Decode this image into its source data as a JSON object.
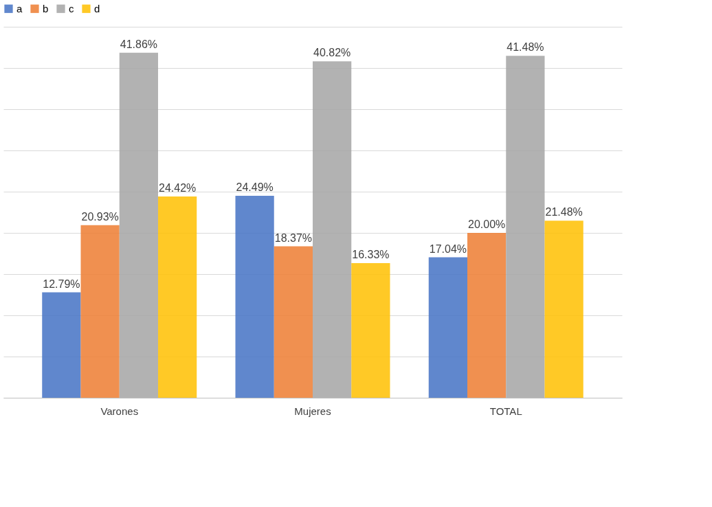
{
  "chart_data": {
    "type": "bar",
    "categories": [
      "Varones",
      "Mujeres",
      "TOTAL"
    ],
    "series": [
      {
        "name": "a",
        "color": "#4472c4",
        "values": [
          12.79,
          24.49,
          17.04
        ],
        "value_labels": [
          "12.79%",
          "24.49%",
          "17.04%"
        ]
      },
      {
        "name": "b",
        "color": "#ed7d31",
        "values": [
          20.93,
          18.37,
          20.0
        ],
        "value_labels": [
          "20.93%",
          "18.37%",
          "20.00%"
        ]
      },
      {
        "name": "c",
        "color": "#a5a5a5",
        "values": [
          41.86,
          40.82,
          41.48
        ],
        "value_labels": [
          "41.86%",
          "40.82%",
          "41.48%"
        ]
      },
      {
        "name": "d",
        "color": "#ffc000",
        "values": [
          24.42,
          16.33,
          21.48
        ],
        "value_labels": [
          "24.42%",
          "16.33%",
          "21.48%"
        ]
      }
    ],
    "ylim": [
      0,
      45
    ],
    "yticks": [
      {
        "value": 0,
        "label": null
      },
      {
        "value": 5,
        "label": null
      },
      {
        "value": 10,
        "label": null
      },
      {
        "value": 15,
        "label": null
      },
      {
        "value": 20,
        "label": null
      },
      {
        "value": 25,
        "label": null
      },
      {
        "value": 30,
        "label": null
      },
      {
        "value": 35,
        "label": null
      },
      {
        "value": 40,
        "label": null
      },
      {
        "value": 45,
        "label": null
      }
    ],
    "grid": "y",
    "legend": "top",
    "tick_labels": "x"
  }
}
